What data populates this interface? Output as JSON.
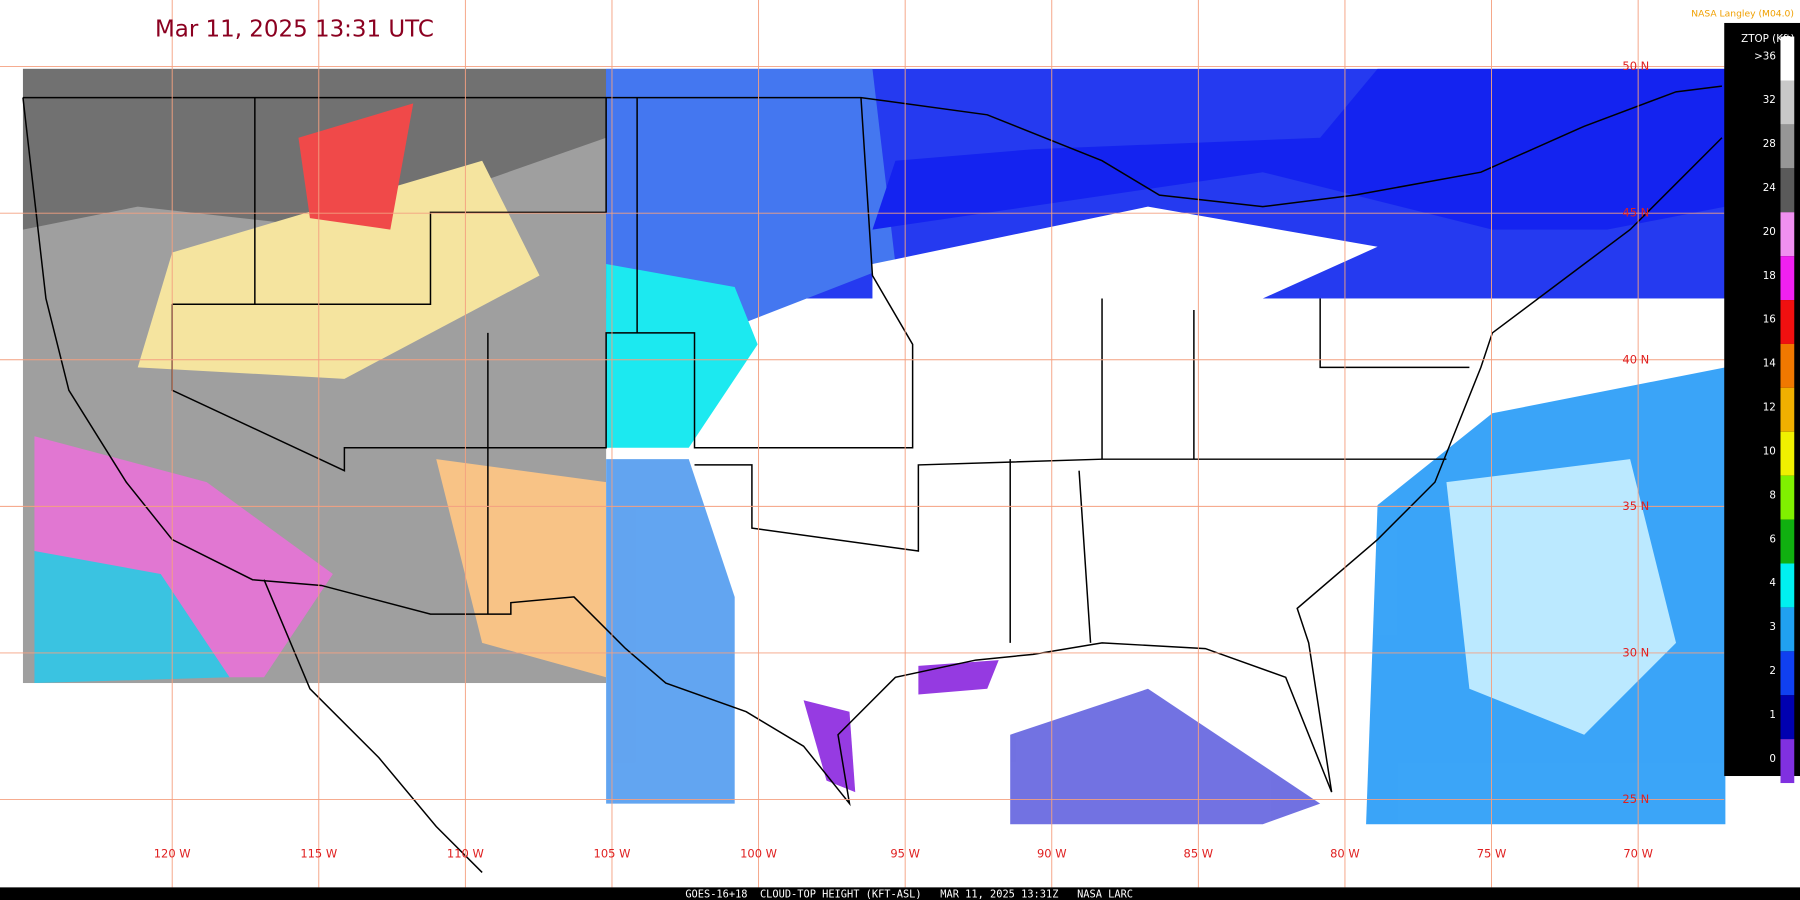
{
  "timestamp": "Mar 11, 2025 13:31 UTC",
  "credit": "NASA Langley (M04.0)",
  "footer": "GOES-16+18  CLOUD-TOP HEIGHT (KFT-ASL)   MAR 11, 2025 13:31Z   NASA LARC",
  "longitude_labels": [
    "120 W",
    "115 W",
    "110 W",
    "105 W",
    "100 W",
    "95 W",
    "90 W",
    "85 W",
    "80 W",
    "75 W",
    "70 W"
  ],
  "latitude_labels": [
    "50 N",
    "45 N",
    "40 N",
    "35 N",
    "30 N",
    "25 N"
  ],
  "legend": {
    "title": "ZTOP (Kft)",
    "labels": [
      ">36",
      "32",
      "28",
      "24",
      "20",
      "18",
      "16",
      "14",
      "12",
      "10",
      "8",
      "6",
      "4",
      "3",
      "2",
      "1",
      "0"
    ],
    "colors": [
      "#ffffff",
      "#c8c8c8",
      "#969696",
      "#5a5a5a",
      "#f090f0",
      "#f020f0",
      "#f01010",
      "#f07800",
      "#f0b000",
      "#f0f000",
      "#80f000",
      "#10b010",
      "#00f0f0",
      "#20a0f0",
      "#1040f0",
      "#0000b0",
      "#8030e0"
    ]
  }
}
